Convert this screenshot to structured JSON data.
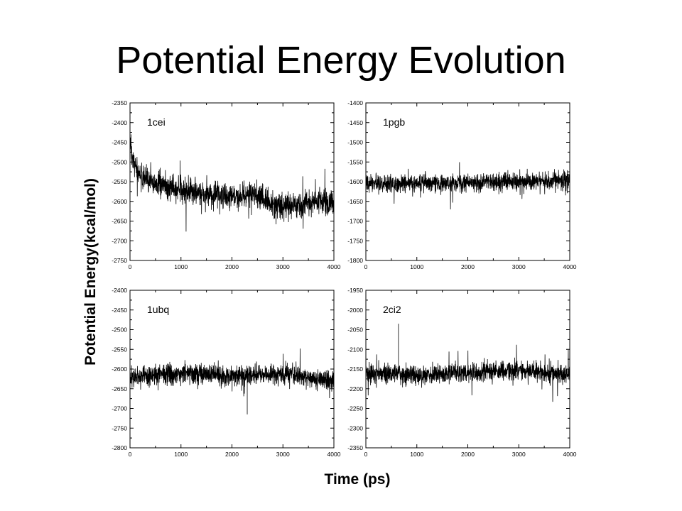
{
  "title": "Potential Energy Evolution",
  "ylabel": "Potential Energy(kcal/mol)",
  "xlabel": "Time (ps)",
  "chart_data": [
    {
      "type": "line",
      "name": "1cei",
      "xlim": [
        0,
        4000
      ],
      "ylim": [
        -2750,
        -2350
      ],
      "yticks": [
        -2350,
        -2400,
        -2450,
        -2500,
        -2550,
        -2600,
        -2650,
        -2700,
        -2750
      ],
      "xticks": [
        0,
        1000,
        2000,
        3000,
        4000
      ],
      "line_color": "#000000",
      "series": [
        {
          "name": "1cei",
          "x": [
            0,
            50,
            150,
            300,
            500,
            800,
            1200,
            1600,
            2000,
            2400,
            2600,
            2800,
            3000,
            3200,
            3400,
            3600,
            3800,
            4000
          ],
          "y": [
            -2450,
            -2490,
            -2525,
            -2545,
            -2555,
            -2565,
            -2575,
            -2585,
            -2590,
            -2580,
            -2590,
            -2610,
            -2615,
            -2610,
            -2605,
            -2600,
            -2600,
            -2605
          ],
          "noise": 28,
          "spike_min": -2430
        }
      ]
    },
    {
      "type": "line",
      "name": "1pgb",
      "xlim": [
        0,
        4000
      ],
      "ylim": [
        -1800,
        -1400
      ],
      "yticks": [
        -1400,
        -1450,
        -1500,
        -1550,
        -1600,
        -1650,
        -1700,
        -1750,
        -1800
      ],
      "xticks": [
        0,
        1000,
        2000,
        3000,
        4000
      ],
      "line_color": "#000000",
      "series": [
        {
          "name": "1pgb",
          "x": [
            0,
            1000,
            2000,
            3000,
            4000
          ],
          "y": [
            -1605,
            -1605,
            -1602,
            -1600,
            -1598
          ],
          "noise": 20
        }
      ]
    },
    {
      "type": "line",
      "name": "1ubq",
      "xlim": [
        0,
        4000
      ],
      "ylim": [
        -2800,
        -2400
      ],
      "yticks": [
        -2400,
        -2450,
        -2500,
        -2550,
        -2600,
        -2650,
        -2700,
        -2750,
        -2800
      ],
      "xticks": [
        0,
        1000,
        2000,
        3000,
        4000
      ],
      "line_color": "#000000",
      "series": [
        {
          "name": "1ubq",
          "x": [
            0,
            1000,
            2000,
            3000,
            3800,
            4000
          ],
          "y": [
            -2620,
            -2610,
            -2618,
            -2612,
            -2625,
            -2630
          ],
          "noise": 22,
          "spike_max": -2715
        }
      ]
    },
    {
      "type": "line",
      "name": "2ci2",
      "xlim": [
        0,
        4000
      ],
      "ylim": [
        -2350,
        -1950
      ],
      "yticks": [
        -1950,
        -2000,
        -2050,
        -2100,
        -2150,
        -2200,
        -2250,
        -2300,
        -2350
      ],
      "xticks": [
        0,
        1000,
        2000,
        3000,
        4000
      ],
      "line_color": "#000000",
      "series": [
        {
          "name": "2ci2",
          "x": [
            0,
            1000,
            2000,
            3000,
            4000
          ],
          "y": [
            -2160,
            -2165,
            -2160,
            -2152,
            -2165
          ],
          "noise": 22,
          "spike_min": -2035,
          "spike_at": 640
        }
      ]
    }
  ]
}
